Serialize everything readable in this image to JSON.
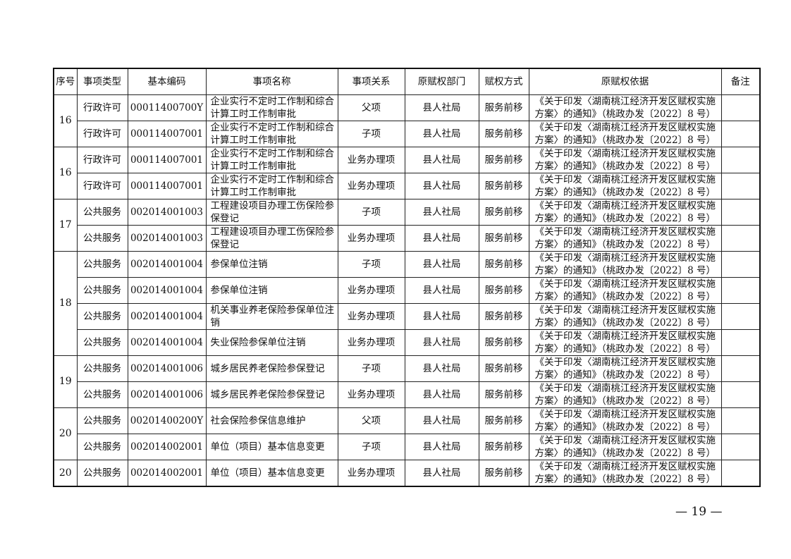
{
  "headers": [
    "序号",
    "事项类型",
    "基本编码",
    "事项名称",
    "事项关系",
    "原赋权部门",
    "赋权方式",
    "原赋权依据",
    "备注"
  ],
  "groups": [
    {
      "seq": "16",
      "rows": [
        [
          "行政许可",
          "00011400700Y",
          "企业实行不定时工作制和综合计算工时工作制审批",
          "父项",
          "县人社局",
          "服务前移",
          "《关于印发〈湖南桃江经济开发区赋权实施方案〉的通知》（桃政办发〔2022〕8 号）",
          ""
        ],
        [
          "行政许可",
          "000114007001",
          "企业实行不定时工作制和综合计算工时工作制审批",
          "子项",
          "县人社局",
          "服务前移",
          "《关于印发〈湖南桃江经济开发区赋权实施方案〉的通知》（桃政办发〔2022〕8 号）",
          ""
        ]
      ]
    },
    {
      "seq": "16",
      "rows": [
        [
          "行政许可",
          "000114007001",
          "企业实行不定时工作制和综合计算工时工作制审批",
          "业务办理项",
          "县人社局",
          "服务前移",
          "《关于印发〈湖南桃江经济开发区赋权实施方案〉的通知》（桃政办发〔2022〕8 号）",
          ""
        ],
        [
          "行政许可",
          "000114007001",
          "企业实行不定时工作制和综合计算工时工作制审批",
          "业务办理项",
          "县人社局",
          "服务前移",
          "《关于印发〈湖南桃江经济开发区赋权实施方案〉的通知》（桃政办发〔2022〕8 号）",
          ""
        ]
      ]
    },
    {
      "seq": "17",
      "rows": [
        [
          "公共服务",
          "002014001003",
          "工程建设项目办理工伤保险参保登记",
          "子项",
          "县人社局",
          "服务前移",
          "《关于印发〈湖南桃江经济开发区赋权实施方案〉的通知》（桃政办发〔2022〕8 号）",
          ""
        ],
        [
          "公共服务",
          "002014001003",
          "工程建设项目办理工伤保险参保登记",
          "业务办理项",
          "县人社局",
          "服务前移",
          "《关于印发〈湖南桃江经济开发区赋权实施方案〉的通知》（桃政办发〔2022〕8 号）",
          ""
        ]
      ]
    },
    {
      "seq": "18",
      "rows": [
        [
          "公共服务",
          "002014001004",
          "参保单位注销",
          "子项",
          "县人社局",
          "服务前移",
          "《关于印发〈湖南桃江经济开发区赋权实施方案〉的通知》（桃政办发〔2022〕8 号）",
          ""
        ],
        [
          "公共服务",
          "002014001004",
          "参保单位注销",
          "业务办理项",
          "县人社局",
          "服务前移",
          "《关于印发〈湖南桃江经济开发区赋权实施方案〉的通知》（桃政办发〔2022〕8 号）",
          ""
        ],
        [
          "公共服务",
          "002014001004",
          "机关事业养老保险参保单位注销",
          "业务办理项",
          "县人社局",
          "服务前移",
          "《关于印发〈湖南桃江经济开发区赋权实施方案〉的通知》（桃政办发〔2022〕8 号）",
          ""
        ],
        [
          "公共服务",
          "002014001004",
          "失业保险参保单位注销",
          "业务办理项",
          "县人社局",
          "服务前移",
          "《关于印发〈湖南桃江经济开发区赋权实施方案〉的通知》（桃政办发〔2022〕8 号）",
          ""
        ]
      ]
    },
    {
      "seq": "19",
      "rows": [
        [
          "公共服务",
          "002014001006",
          "城乡居民养老保险参保登记",
          "子项",
          "县人社局",
          "服务前移",
          "《关于印发〈湖南桃江经济开发区赋权实施方案〉的通知》（桃政办发〔2022〕8 号）",
          ""
        ],
        [
          "公共服务",
          "002014001006",
          "城乡居民养老保险参保登记",
          "业务办理项",
          "县人社局",
          "服务前移",
          "《关于印发〈湖南桃江经济开发区赋权实施方案〉的通知》（桃政办发〔2022〕8 号）",
          ""
        ]
      ]
    },
    {
      "seq": "20",
      "rows": [
        [
          "公共服务",
          "00201400200Y",
          "社会保险参保信息维护",
          "父项",
          "县人社局",
          "服务前移",
          "《关于印发〈湖南桃江经济开发区赋权实施方案〉的通知》（桃政办发〔2022〕8 号）",
          ""
        ],
        [
          "公共服务",
          "002014002001",
          "单位（项目）基本信息变更",
          "子项",
          "县人社局",
          "服务前移",
          "《关于印发〈湖南桃江经济开发区赋权实施方案〉的通知》（桃政办发〔2022〕8 号）",
          ""
        ]
      ]
    },
    {
      "seq": "20",
      "rows": [
        [
          "公共服务",
          "002014002001",
          "单位（项目）基本信息变更",
          "业务办理项",
          "县人社局",
          "服务前移",
          "《关于印发〈湖南桃江经济开发区赋权实施方案〉的通知》（桃政办发〔2022〕8 号）",
          ""
        ]
      ]
    }
  ],
  "page_number": "— 19 —"
}
